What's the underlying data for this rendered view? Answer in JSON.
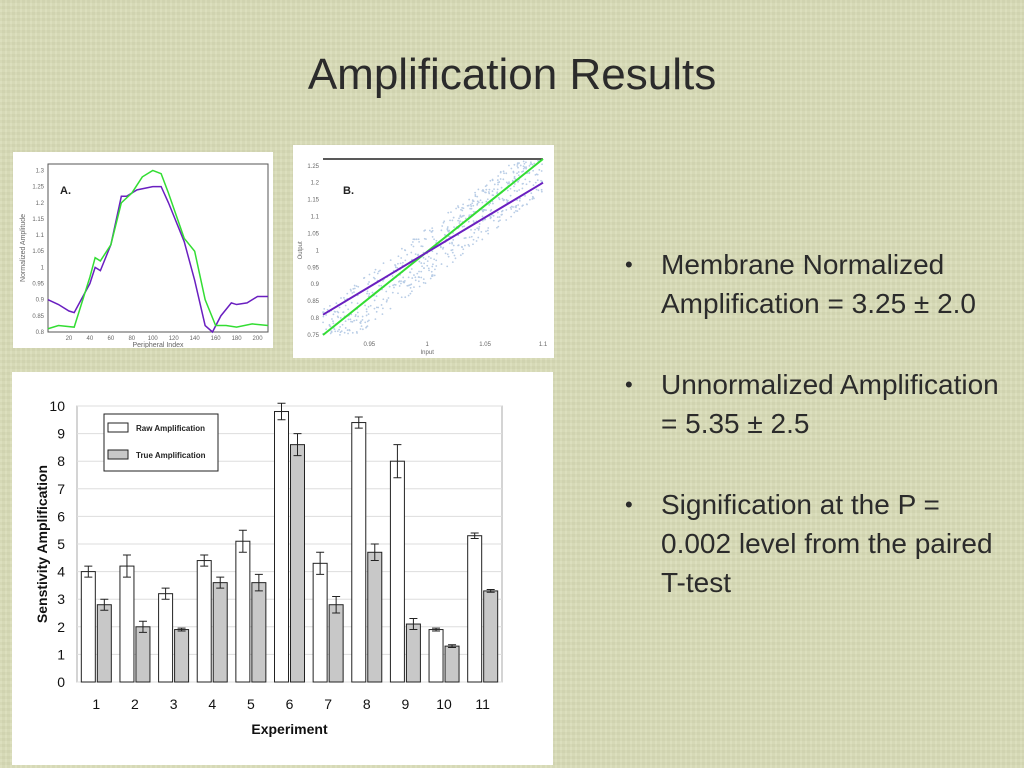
{
  "slide": {
    "title": "Amplification Results"
  },
  "bullets": [
    "Membrane Normalized Amplification = 3.25 ± 2.0",
    "Unnormalized Amplification = 5.35 ± 2.5",
    "Signification at the P = 0.002 level from the paired T-test"
  ],
  "colors": {
    "green": "#33dd33",
    "purple": "#6a1fc0",
    "bar_gray": "#c8c8c8"
  },
  "chart_data": [
    {
      "type": "line",
      "panel_label": "A.",
      "xlabel": "Peripheral Index",
      "ylabel": "Normalized Amplitude",
      "xlim": [
        0,
        210
      ],
      "ylim": [
        0.8,
        1.32
      ],
      "xticks": [
        20,
        40,
        60,
        80,
        100,
        120,
        140,
        160,
        180,
        200
      ],
      "yticks": [
        0.8,
        0.85,
        0.9,
        0.95,
        1,
        1.05,
        1.1,
        1.15,
        1.2,
        1.25,
        1.3
      ],
      "series": [
        {
          "name": "purple",
          "x": [
            0,
            10,
            20,
            25,
            40,
            45,
            50,
            60,
            70,
            75,
            85,
            100,
            108,
            115,
            130,
            140,
            150,
            157,
            165,
            175,
            180,
            190,
            200,
            210
          ],
          "y": [
            0.9,
            0.885,
            0.865,
            0.86,
            0.95,
            1.0,
            0.99,
            1.07,
            1.22,
            1.22,
            1.24,
            1.25,
            1.25,
            1.2,
            1.08,
            0.96,
            0.82,
            0.8,
            0.85,
            0.89,
            0.885,
            0.89,
            0.91,
            0.91
          ]
        },
        {
          "name": "green",
          "x": [
            0,
            10,
            25,
            40,
            45,
            50,
            60,
            70,
            80,
            90,
            100,
            108,
            115,
            130,
            140,
            150,
            160,
            170,
            180,
            195,
            210
          ],
          "y": [
            0.81,
            0.82,
            0.815,
            0.97,
            1.03,
            1.02,
            1.07,
            1.2,
            1.23,
            1.28,
            1.3,
            1.29,
            1.23,
            1.09,
            1.05,
            0.9,
            0.82,
            0.82,
            0.815,
            0.825,
            0.82
          ]
        }
      ]
    },
    {
      "type": "scatter",
      "panel_label": "B.",
      "xlabel": "Input",
      "ylabel": "Output",
      "xlim": [
        0.91,
        1.1
      ],
      "ylim": [
        0.75,
        1.27
      ],
      "xticks": [
        0.95,
        1,
        1.05,
        1.1
      ],
      "yticks": [
        0.75,
        0.8,
        0.85,
        0.9,
        0.95,
        1,
        1.05,
        1.1,
        1.15,
        1.2,
        1.25
      ],
      "series": [
        {
          "name": "green fit",
          "x": [
            0.91,
            1.1
          ],
          "y": [
            0.75,
            1.27
          ]
        },
        {
          "name": "purple fit",
          "x": [
            0.91,
            1.1
          ],
          "y": [
            0.81,
            1.2
          ]
        }
      ]
    },
    {
      "type": "bar",
      "xlabel": "Experiment",
      "ylabel": "Senstivity Amplification",
      "ylim": [
        0,
        10
      ],
      "yticks": [
        0,
        1,
        2,
        3,
        4,
        5,
        6,
        7,
        8,
        9,
        10
      ],
      "categories": [
        "1",
        "2",
        "3",
        "4",
        "5",
        "6",
        "7",
        "8",
        "9",
        "10",
        "11"
      ],
      "series": [
        {
          "name": "Raw Amplification",
          "values": [
            4.0,
            4.2,
            3.2,
            4.4,
            5.1,
            9.8,
            4.3,
            9.4,
            8.0,
            1.9,
            5.3
          ],
          "errors": [
            0.2,
            0.4,
            0.2,
            0.2,
            0.4,
            0.3,
            0.4,
            0.2,
            0.6,
            0.05,
            0.1
          ]
        },
        {
          "name": "True Amplification",
          "values": [
            2.8,
            2.0,
            1.9,
            3.6,
            3.6,
            8.6,
            2.8,
            4.7,
            2.1,
            1.3,
            3.3
          ],
          "errors": [
            0.2,
            0.2,
            0.05,
            0.2,
            0.3,
            0.4,
            0.3,
            0.3,
            0.2,
            0.05,
            0.05
          ]
        }
      ]
    }
  ]
}
